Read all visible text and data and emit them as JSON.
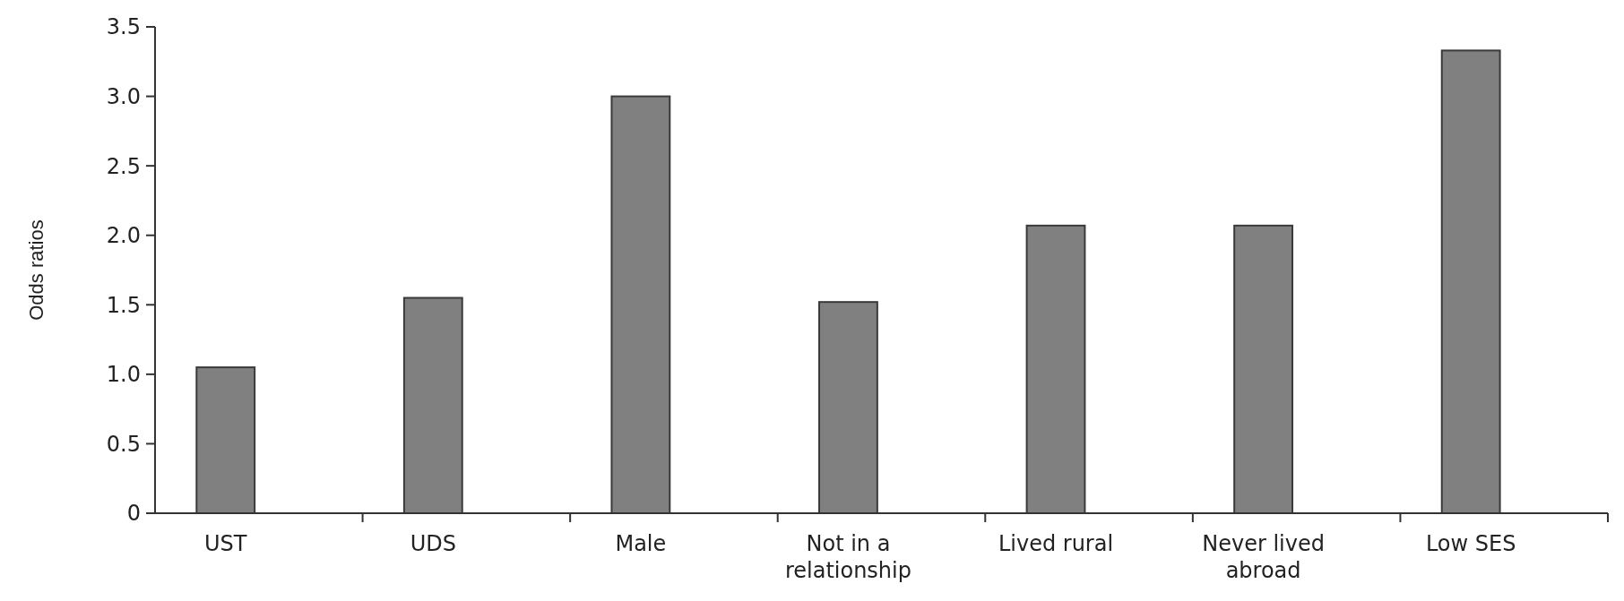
{
  "chart_data": {
    "type": "bar",
    "ylabel": "Odds ratios",
    "categories": [
      "UST",
      "UDS",
      "Male",
      "Not in a relationship",
      "Lived rural",
      "Never lived abroad",
      "Low SES"
    ],
    "values": [
      1.05,
      1.55,
      3.0,
      1.52,
      2.07,
      2.07,
      3.33
    ],
    "color": "#808080",
    "ylim": [
      0,
      3.5
    ],
    "yticks": [
      {
        "value": 0,
        "label": "0"
      },
      {
        "value": 0.5,
        "label": "0.5"
      },
      {
        "value": 1,
        "label": "1.0"
      },
      {
        "value": 1.5,
        "label": "1.5"
      },
      {
        "value": 2,
        "label": "2.0"
      },
      {
        "value": 2.5,
        "label": "2.5"
      },
      {
        "value": 3,
        "label": "3.0"
      },
      {
        "value": 3.5,
        "label": "3.5"
      }
    ],
    "grid": false
  }
}
